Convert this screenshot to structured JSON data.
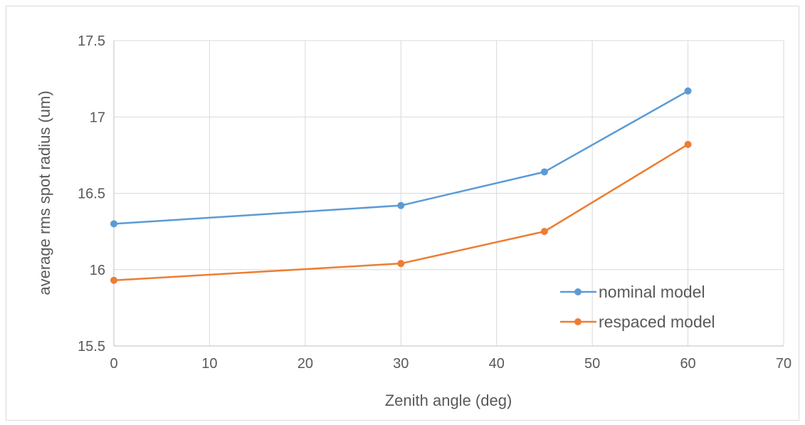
{
  "chart_data": {
    "type": "line",
    "title": "",
    "xlabel": "Zenith angle (deg)",
    "ylabel": "average rms spot radius (um)",
    "xlim": [
      0,
      70
    ],
    "ylim": [
      15.5,
      17.5
    ],
    "x_ticks": [
      "0",
      "10",
      "20",
      "30",
      "40",
      "50",
      "60",
      "70"
    ],
    "y_ticks": [
      "15.5",
      "16",
      "16.5",
      "17",
      "17.5"
    ],
    "grid": true,
    "legend_position": "bottom-right",
    "series": [
      {
        "name": "nominal model",
        "color": "#5b9bd5",
        "x": [
          0,
          30,
          45,
          60
        ],
        "y": [
          16.3,
          16.42,
          16.64,
          17.17
        ]
      },
      {
        "name": "respaced model",
        "color": "#ed7d31",
        "x": [
          0,
          30,
          45,
          60
        ],
        "y": [
          15.93,
          16.04,
          16.25,
          16.82
        ]
      }
    ]
  }
}
